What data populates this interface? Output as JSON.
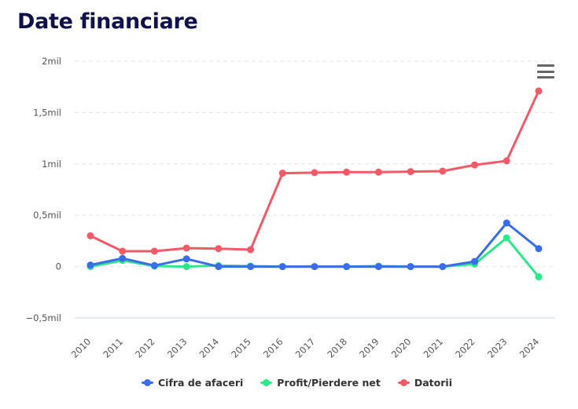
{
  "page": {
    "title": "Date financiare"
  },
  "chart_data": {
    "type": "line",
    "title": "",
    "xlabel": "",
    "ylabel": "",
    "ylim": [
      -500000,
      2000000
    ],
    "y_ticks": [
      {
        "value": 2000000,
        "label": "2mil"
      },
      {
        "value": 1500000,
        "label": "1,5mil"
      },
      {
        "value": 1000000,
        "label": "1mil"
      },
      {
        "value": 500000,
        "label": "0,5mil"
      },
      {
        "value": 0,
        "label": "0"
      },
      {
        "value": -500000,
        "label": "−0,5mil"
      }
    ],
    "categories": [
      "2010",
      "2011",
      "2012",
      "2013",
      "2014",
      "2015",
      "2016",
      "2017",
      "2018",
      "2019",
      "2020",
      "2021",
      "2022",
      "2023",
      "2024"
    ],
    "grid": true,
    "legend_position": "bottom",
    "series": [
      {
        "name": "Cifra de afaceri",
        "color": "#3a6ee8",
        "values": [
          15000,
          80000,
          10000,
          75000,
          0,
          0,
          0,
          0,
          0,
          0,
          0,
          0,
          50000,
          425000,
          175000
        ]
      },
      {
        "name": "Profit/Pierdere net",
        "color": "#2de88a",
        "values": [
          0,
          60000,
          5000,
          0,
          10000,
          5000,
          0,
          0,
          0,
          5000,
          0,
          0,
          25000,
          280000,
          -100000
        ]
      },
      {
        "name": "Datorii",
        "color": "#f25a68",
        "values": [
          300000,
          150000,
          150000,
          180000,
          175000,
          165000,
          910000,
          915000,
          920000,
          920000,
          925000,
          930000,
          990000,
          1030000,
          1710000
        ]
      }
    ]
  },
  "toolbar": {
    "menu_icon": "hamburger-menu-icon"
  }
}
